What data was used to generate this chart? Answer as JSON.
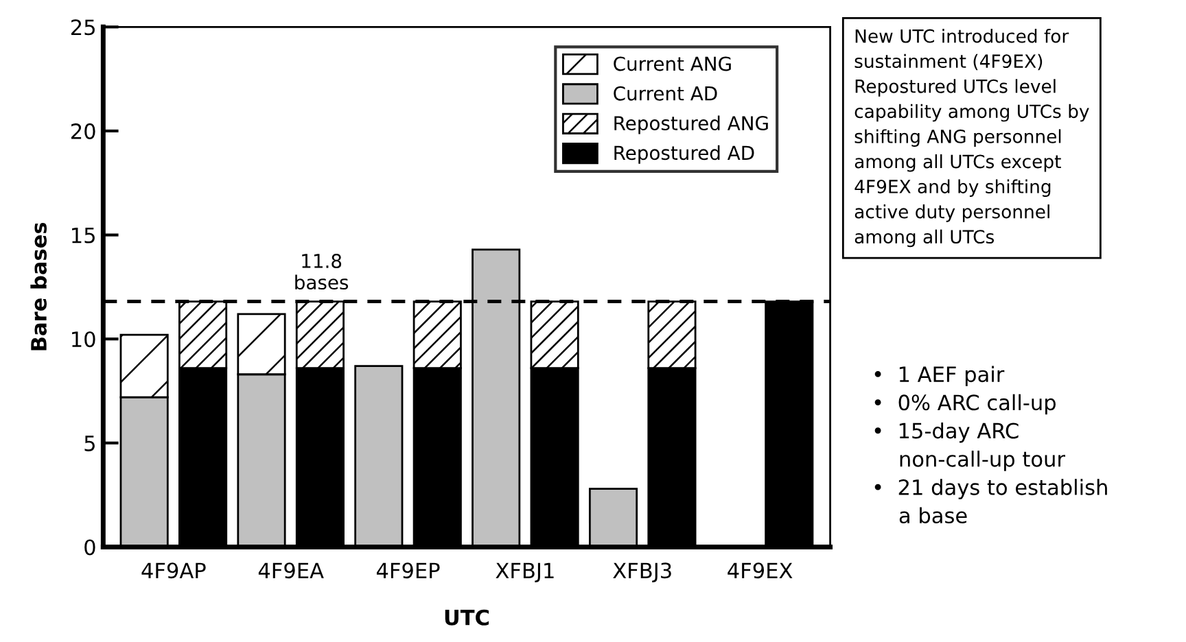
{
  "chart_data": {
    "type": "bar",
    "stacked": true,
    "xlabel": "UTC",
    "ylabel": "Bare bases",
    "categories": [
      "4F9AP",
      null,
      "4F9EA",
      null,
      "4F9EP",
      null,
      "XFBJ1",
      null,
      "XFBJ3",
      null,
      "4F9EX",
      null
    ],
    "series": [
      {
        "name": "Current AD",
        "color": "#c0c0c0",
        "values": [
          7.2,
          null,
          8.3,
          null,
          8.7,
          null,
          14.3,
          null,
          2.8,
          null,
          null,
          null
        ]
      },
      {
        "name": "Current ANG",
        "color": "#ffffff",
        "values": [
          3.0,
          null,
          2.9,
          null,
          null,
          null,
          null,
          null,
          null,
          null,
          null,
          null
        ]
      },
      {
        "name": "Repostured AD",
        "color": "#000000",
        "values": [
          null,
          8.6,
          null,
          8.6,
          null,
          8.6,
          null,
          8.6,
          null,
          8.6,
          null,
          11.8
        ]
      },
      {
        "name": "Repostured ANG",
        "color": "#ffffff",
        "values": [
          null,
          3.2,
          null,
          3.2,
          null,
          3.2,
          null,
          3.2,
          null,
          3.2,
          null,
          null
        ]
      }
    ],
    "ylim": [
      0,
      25
    ],
    "yticks": [
      0,
      5,
      10,
      15,
      20,
      25
    ],
    "grid": false,
    "legend": "top right",
    "ref_lines": [
      {
        "axis": "y",
        "value": 11.8,
        "label": "11.8\nbases",
        "line_style": "dashed",
        "color": "#000000"
      }
    ],
    "annotations": [
      "New UTC introduced for\nsustainment (4F9EX)\nRepostured UTCs level\ncapability among UTCs by\nshifting ANG personnel\namong all UTCs except\n4F9EX and by shifting\nactive duty personnel\namong all UTCs",
      "•  1 AEF pair\n•  0% ARC call-up\n•  15-day ARC\n    non-call-up tour\n•  21 days to establish\n    a base"
    ]
  }
}
